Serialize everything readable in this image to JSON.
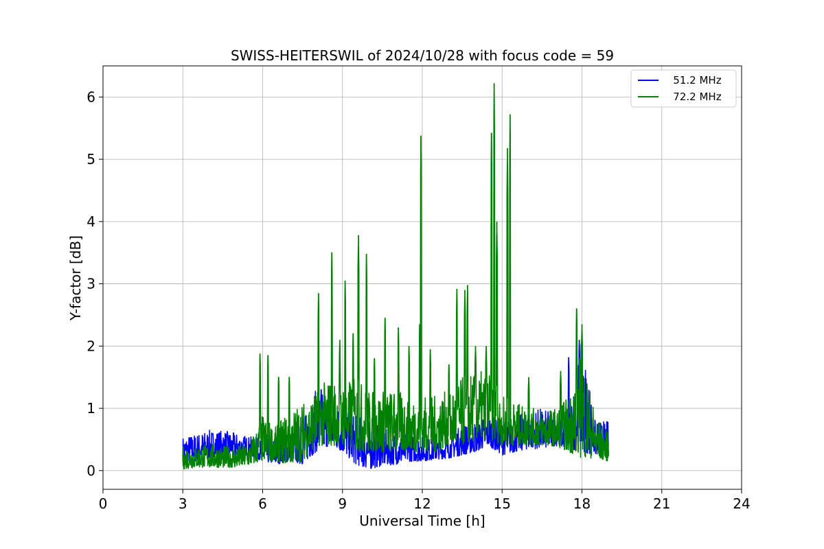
{
  "chart_data": {
    "type": "line",
    "title": "SWISS-HEITERSWIL of 2024/10/28 with focus code = 59",
    "xlabel": "Universal Time [h]",
    "ylabel": "Y-factor [dB]",
    "xlim": [
      0,
      24
    ],
    "ylim": [
      -0.3,
      6.5
    ],
    "xticks": [
      "0",
      "3",
      "6",
      "9",
      "12",
      "15",
      "18",
      "21",
      "24"
    ],
    "yticks": [
      "0",
      "1",
      "2",
      "3",
      "4",
      "5",
      "6"
    ],
    "grid": true,
    "legend_position": "top-right",
    "series": [
      {
        "name": "   51.2 MHz",
        "color": "#0000ff",
        "x": [
          3.0,
          3.5,
          4.0,
          4.5,
          5.0,
          5.5,
          6.0,
          6.5,
          7.0,
          7.5,
          8.0,
          8.5,
          9.0,
          9.5,
          10.0,
          10.5,
          11.0,
          11.5,
          12.0,
          12.5,
          13.0,
          13.5,
          14.0,
          14.5,
          15.0,
          15.5,
          16.0,
          16.5,
          17.0,
          17.5,
          18.0,
          18.5,
          19.0
        ],
        "low": [
          0.15,
          0.15,
          0.2,
          0.25,
          0.22,
          0.25,
          0.15,
          0.1,
          0.15,
          0.1,
          0.3,
          0.4,
          0.3,
          0.1,
          0.02,
          0.08,
          0.1,
          0.15,
          0.15,
          0.18,
          0.2,
          0.25,
          0.3,
          0.4,
          0.25,
          0.3,
          0.35,
          0.35,
          0.4,
          0.35,
          0.3,
          0.25,
          0.25
        ],
        "high": [
          0.55,
          0.6,
          0.65,
          0.65,
          0.6,
          0.55,
          0.5,
          0.55,
          0.6,
          0.8,
          1.3,
          1.2,
          1.0,
          0.9,
          0.8,
          0.7,
          0.6,
          0.6,
          0.55,
          0.5,
          0.55,
          0.75,
          0.8,
          0.9,
          0.8,
          0.85,
          1.0,
          1.0,
          0.9,
          0.8,
          2.1,
          0.8,
          0.8
        ],
        "peaks": [
          [
            17.5,
            1.82
          ],
          [
            17.9,
            2.1
          ],
          [
            8.2,
            1.3
          ]
        ]
      },
      {
        "name": "   72.2 MHz",
        "color": "#008000",
        "x": [
          3.0,
          3.5,
          4.0,
          4.5,
          5.0,
          5.5,
          6.0,
          6.5,
          7.0,
          7.5,
          8.0,
          8.5,
          9.0,
          9.5,
          10.0,
          10.5,
          11.0,
          11.5,
          12.0,
          12.5,
          13.0,
          13.5,
          14.0,
          14.5,
          15.0,
          15.5,
          16.0,
          16.5,
          17.0,
          17.5,
          18.0,
          18.5,
          19.0
        ],
        "low": [
          0.02,
          0.05,
          0.05,
          0.05,
          0.05,
          0.08,
          0.15,
          0.15,
          0.1,
          0.15,
          0.4,
          0.4,
          0.4,
          0.3,
          0.3,
          0.3,
          0.3,
          0.3,
          0.3,
          0.3,
          0.4,
          0.4,
          0.5,
          0.5,
          0.4,
          0.4,
          0.4,
          0.4,
          0.4,
          0.3,
          0.2,
          0.2,
          0.15
        ],
        "high": [
          0.4,
          0.4,
          0.45,
          0.4,
          0.4,
          0.45,
          0.9,
          0.7,
          1.0,
          1.1,
          1.3,
          1.5,
          1.4,
          1.5,
          1.3,
          1.3,
          1.3,
          1.2,
          1.2,
          1.2,
          1.3,
          1.5,
          1.6,
          1.6,
          1.2,
          1.1,
          1.0,
          1.0,
          1.0,
          1.2,
          2.0,
          0.9,
          0.6
        ],
        "peaks": [
          [
            5.9,
            1.88
          ],
          [
            6.2,
            1.85
          ],
          [
            6.6,
            1.5
          ],
          [
            7.0,
            1.5
          ],
          [
            8.1,
            2.85
          ],
          [
            8.6,
            3.5
          ],
          [
            8.9,
            2.1
          ],
          [
            9.1,
            3.05
          ],
          [
            9.4,
            2.2
          ],
          [
            9.6,
            3.78
          ],
          [
            9.9,
            3.48
          ],
          [
            10.2,
            1.8
          ],
          [
            10.6,
            2.45
          ],
          [
            11.1,
            2.3
          ],
          [
            11.5,
            2.0
          ],
          [
            11.9,
            2.35
          ],
          [
            11.95,
            5.38
          ],
          [
            12.3,
            1.95
          ],
          [
            13.0,
            1.7
          ],
          [
            13.3,
            2.92
          ],
          [
            13.6,
            2.9
          ],
          [
            13.7,
            2.98
          ],
          [
            14.0,
            2.0
          ],
          [
            14.4,
            2.0
          ],
          [
            14.6,
            5.42
          ],
          [
            14.7,
            6.22
          ],
          [
            14.8,
            4.0
          ],
          [
            15.2,
            5.18
          ],
          [
            15.3,
            5.72
          ],
          [
            16.0,
            1.5
          ],
          [
            17.2,
            1.6
          ],
          [
            17.8,
            2.6
          ],
          [
            18.0,
            2.35
          ]
        ]
      }
    ]
  }
}
